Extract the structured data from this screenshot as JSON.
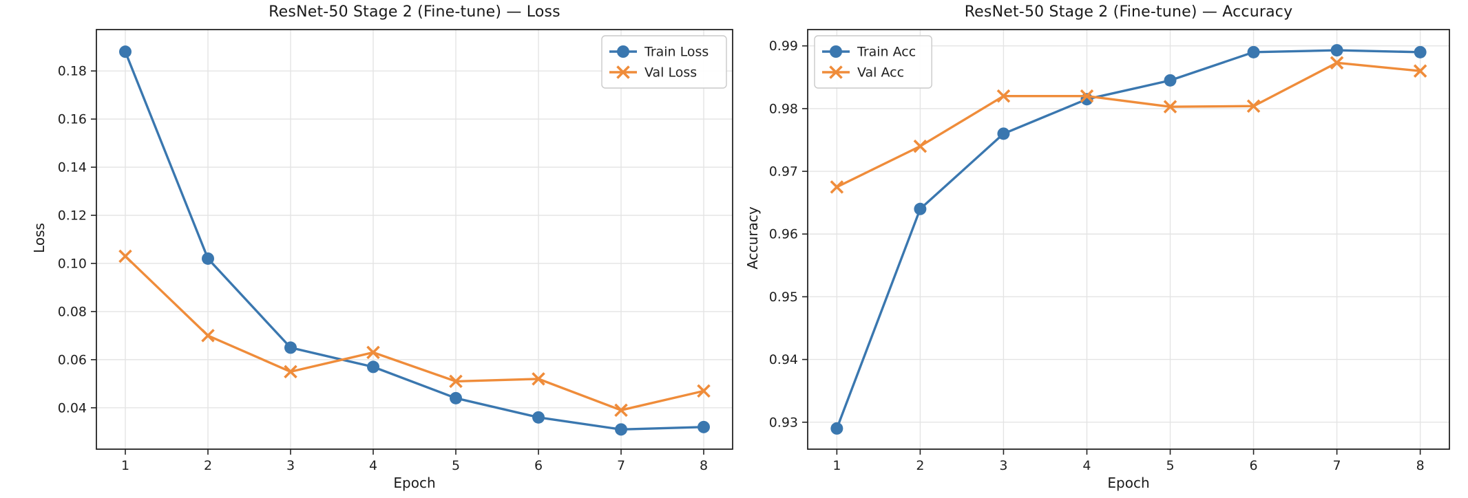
{
  "figure": {
    "background": "#ffffff",
    "accent_blue": "#3a77af",
    "accent_orange": "#ef8c3a",
    "grid_color": "#e4e4e4",
    "spine_color": "#222222",
    "text_color": "#1a1a1a"
  },
  "chart_data": [
    {
      "type": "line",
      "title": "ResNet-50 Stage 2 (Fine-tune) — Loss",
      "xlabel": "Epoch",
      "ylabel": "Loss",
      "x": [
        1,
        2,
        3,
        4,
        5,
        6,
        7,
        8
      ],
      "xtick_labels": [
        "1",
        "2",
        "3",
        "4",
        "5",
        "6",
        "7",
        "8"
      ],
      "ytick_values": [
        0.04,
        0.06,
        0.08,
        0.1,
        0.12,
        0.14,
        0.16,
        0.18
      ],
      "ytick_labels": [
        "0.04",
        "0.06",
        "0.08",
        "0.10",
        "0.12",
        "0.14",
        "0.16",
        "0.18"
      ],
      "xlim": [
        0.65,
        8.35
      ],
      "ylim": [
        0.0228,
        0.1972
      ],
      "grid": true,
      "legend_position": "upper right",
      "series": [
        {
          "name": "Train Loss",
          "color": "#3a77af",
          "marker": "circle",
          "values": [
            0.188,
            0.102,
            0.065,
            0.057,
            0.044,
            0.036,
            0.031,
            0.032
          ]
        },
        {
          "name": "Val Loss",
          "color": "#ef8c3a",
          "marker": "x",
          "values": [
            0.103,
            0.07,
            0.055,
            0.063,
            0.051,
            0.052,
            0.039,
            0.047
          ]
        }
      ]
    },
    {
      "type": "line",
      "title": "ResNet-50 Stage 2 (Fine-tune) — Accuracy",
      "xlabel": "Epoch",
      "ylabel": "Accuracy",
      "x": [
        1,
        2,
        3,
        4,
        5,
        6,
        7,
        8
      ],
      "xtick_labels": [
        "1",
        "2",
        "3",
        "4",
        "5",
        "6",
        "7",
        "8"
      ],
      "ytick_values": [
        0.93,
        0.94,
        0.95,
        0.96,
        0.97,
        0.98,
        0.99
      ],
      "ytick_labels": [
        "0.93",
        "0.94",
        "0.95",
        "0.96",
        "0.97",
        "0.98",
        "0.99"
      ],
      "xlim": [
        0.65,
        8.35
      ],
      "ylim": [
        0.9257,
        0.9926
      ],
      "grid": true,
      "legend_position": "upper left",
      "series": [
        {
          "name": "Train Acc",
          "color": "#3a77af",
          "marker": "circle",
          "values": [
            0.929,
            0.964,
            0.976,
            0.9815,
            0.9845,
            0.989,
            0.9893,
            0.989
          ]
        },
        {
          "name": "Val Acc",
          "color": "#ef8c3a",
          "marker": "x",
          "values": [
            0.9675,
            0.974,
            0.982,
            0.982,
            0.9803,
            0.9804,
            0.9873,
            0.986
          ]
        }
      ]
    }
  ]
}
